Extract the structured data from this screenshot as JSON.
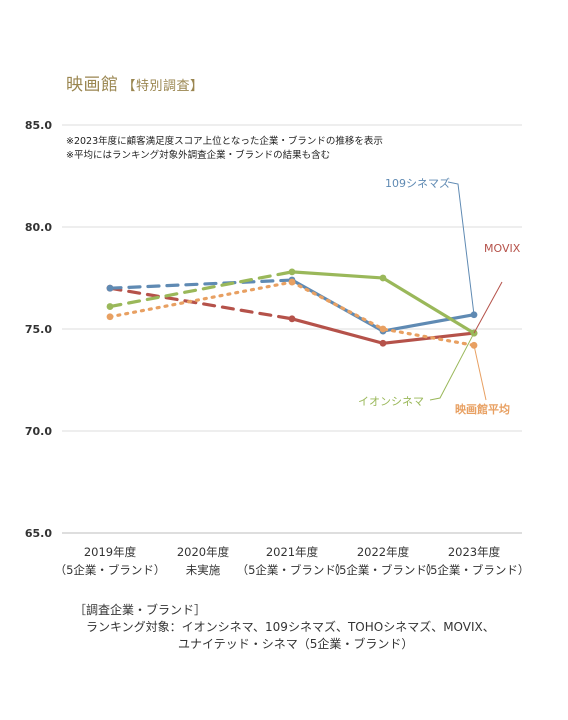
{
  "title": "映画館",
  "subtitle": "【特別調査】",
  "notes": [
    "※2023年度に顧客満足度スコア上位となった企業・ブランドの推移を表示",
    "※平均にはランキング対象外調査企業・ブランドの結果も含む"
  ],
  "footer": {
    "line1": "［調査企業・ブランド］",
    "line2": "ランキング対象：イオンシネマ、109シネマズ、TOHOシネマズ、MOVIX、",
    "line3": "ユナイテッド・シネマ（5企業・ブランド）"
  },
  "colors": {
    "title": "#9a8650",
    "grid": "#dcdcdc",
    "movix": "#b5524a",
    "c109": "#5f8ab3",
    "aeon": "#9ab85a",
    "avg": "#e8a062"
  },
  "chart_data": {
    "type": "line",
    "title": "映画館【特別調査】",
    "categories": [
      [
        "2019年度",
        "（5企業・ブランド）"
      ],
      [
        "2020年度",
        "未実施"
      ],
      [
        "2021年度",
        "（5企業・ブランド）"
      ],
      [
        "2022年度",
        "（5企業・ブランド）"
      ],
      [
        "2023年度",
        "（5企業・ブランド）"
      ]
    ],
    "ylim": [
      65.0,
      85.0
    ],
    "yticks": [
      "65.0",
      "70.0",
      "75.0",
      "80.0",
      "85.0"
    ],
    "grid": true,
    "series": [
      {
        "name": "MOVIX",
        "color": "#b5524a",
        "style": "solid",
        "values": [
          77.0,
          null,
          75.5,
          74.3,
          74.8
        ]
      },
      {
        "name": "109シネマズ",
        "color": "#5f8ab3",
        "style": "solid",
        "values": [
          77.0,
          null,
          77.4,
          74.9,
          75.7
        ]
      },
      {
        "name": "イオンシネマ",
        "color": "#9ab85a",
        "style": "solid",
        "values": [
          76.1,
          null,
          77.8,
          77.5,
          74.8
        ]
      },
      {
        "name": "映画館平均",
        "color": "#e8a062",
        "style": "dotted",
        "values": [
          75.6,
          null,
          77.3,
          75.0,
          74.2
        ]
      }
    ]
  }
}
